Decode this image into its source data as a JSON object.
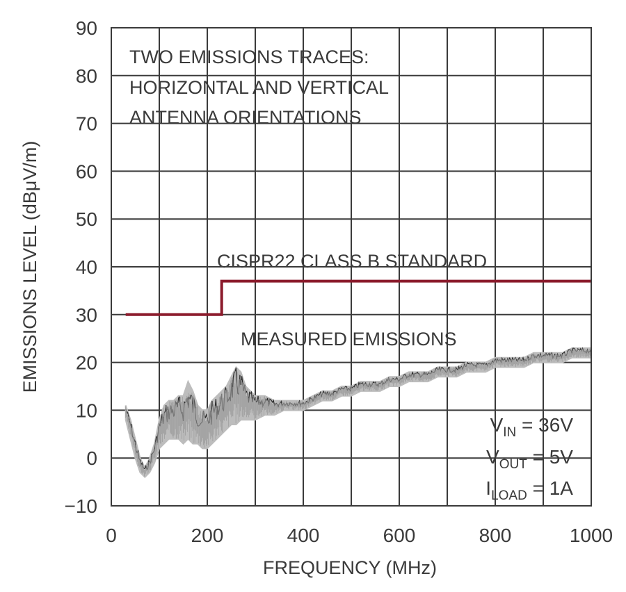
{
  "chart_data": {
    "type": "line",
    "xlabel": "FREQUENCY (MHz)",
    "ylabel": "EMISSIONS LEVEL (dBμV/m)",
    "xlim": [
      0,
      1000
    ],
    "ylim": [
      -10,
      90
    ],
    "x_ticks": [
      "0",
      "200",
      "400",
      "600",
      "800",
      "1000"
    ],
    "y_ticks": [
      "−10",
      "0",
      "10",
      "20",
      "30",
      "40",
      "50",
      "60",
      "70",
      "80",
      "90"
    ],
    "grid": true,
    "annotations": {
      "traces_note": [
        "TWO EMISSIONS TRACES:",
        "HORIZONTAL AND VERTICAL",
        "ANTENNA ORIENTATIONS"
      ],
      "standard_label": "CISPR22 CLASS B STANDARD",
      "measured_label": "MEASURED EMISSIONS"
    },
    "conditions": [
      {
        "symbol": "V",
        "sub": "IN",
        "value": " = 36V"
      },
      {
        "symbol": "V",
        "sub": "OUT",
        "value": " = 5V"
      },
      {
        "symbol": "I",
        "sub": "LOAD",
        "value": " = 1A"
      }
    ],
    "colors": {
      "standard": "#8b1a2b",
      "measured_light": "#bdbdbd",
      "measured_dark": "#2a2a2a",
      "grid": "#3a3a3a"
    },
    "series": [
      {
        "name": "CISPR22 CLASS B STANDARD",
        "x": [
          30,
          230,
          230,
          1000
        ],
        "y": [
          30,
          30,
          37,
          37
        ]
      },
      {
        "name": "MEASURED EMISSIONS",
        "x": [
          30,
          40,
          50,
          60,
          70,
          80,
          90,
          100,
          110,
          120,
          130,
          140,
          150,
          160,
          170,
          180,
          190,
          200,
          210,
          220,
          230,
          240,
          250,
          260,
          270,
          280,
          290,
          300,
          320,
          340,
          360,
          380,
          400,
          420,
          440,
          460,
          480,
          500,
          520,
          540,
          560,
          580,
          600,
          620,
          640,
          660,
          680,
          700,
          720,
          740,
          760,
          780,
          800,
          820,
          840,
          860,
          880,
          900,
          920,
          940,
          960,
          980,
          1000
        ],
        "y_low": [
          8,
          4,
          0,
          -3,
          -4,
          -3,
          -1,
          2,
          3,
          4,
          4,
          4,
          3,
          4,
          3,
          3,
          2,
          2,
          3,
          4,
          5,
          6,
          7,
          7,
          8,
          8,
          8,
          8,
          9,
          9,
          10,
          10,
          10,
          11,
          12,
          12,
          13,
          13,
          14,
          14,
          14,
          15,
          15,
          16,
          16,
          16,
          17,
          17,
          17,
          18,
          18,
          18,
          19,
          19,
          19,
          19,
          20,
          20,
          20,
          20,
          21,
          21,
          21
        ],
        "y_high": [
          11,
          8,
          4,
          0,
          -2,
          0,
          3,
          8,
          11,
          12,
          12,
          13,
          13,
          16,
          14,
          11,
          10,
          10,
          12,
          13,
          14,
          15,
          17,
          19,
          18,
          15,
          14,
          13,
          13,
          12,
          12,
          12,
          12,
          13,
          14,
          14,
          15,
          15,
          16,
          16,
          16,
          17,
          17,
          18,
          18,
          18,
          19,
          19,
          19,
          20,
          20,
          20,
          21,
          21,
          21,
          21,
          22,
          22,
          22,
          22,
          23,
          23,
          23
        ]
      }
    ]
  }
}
